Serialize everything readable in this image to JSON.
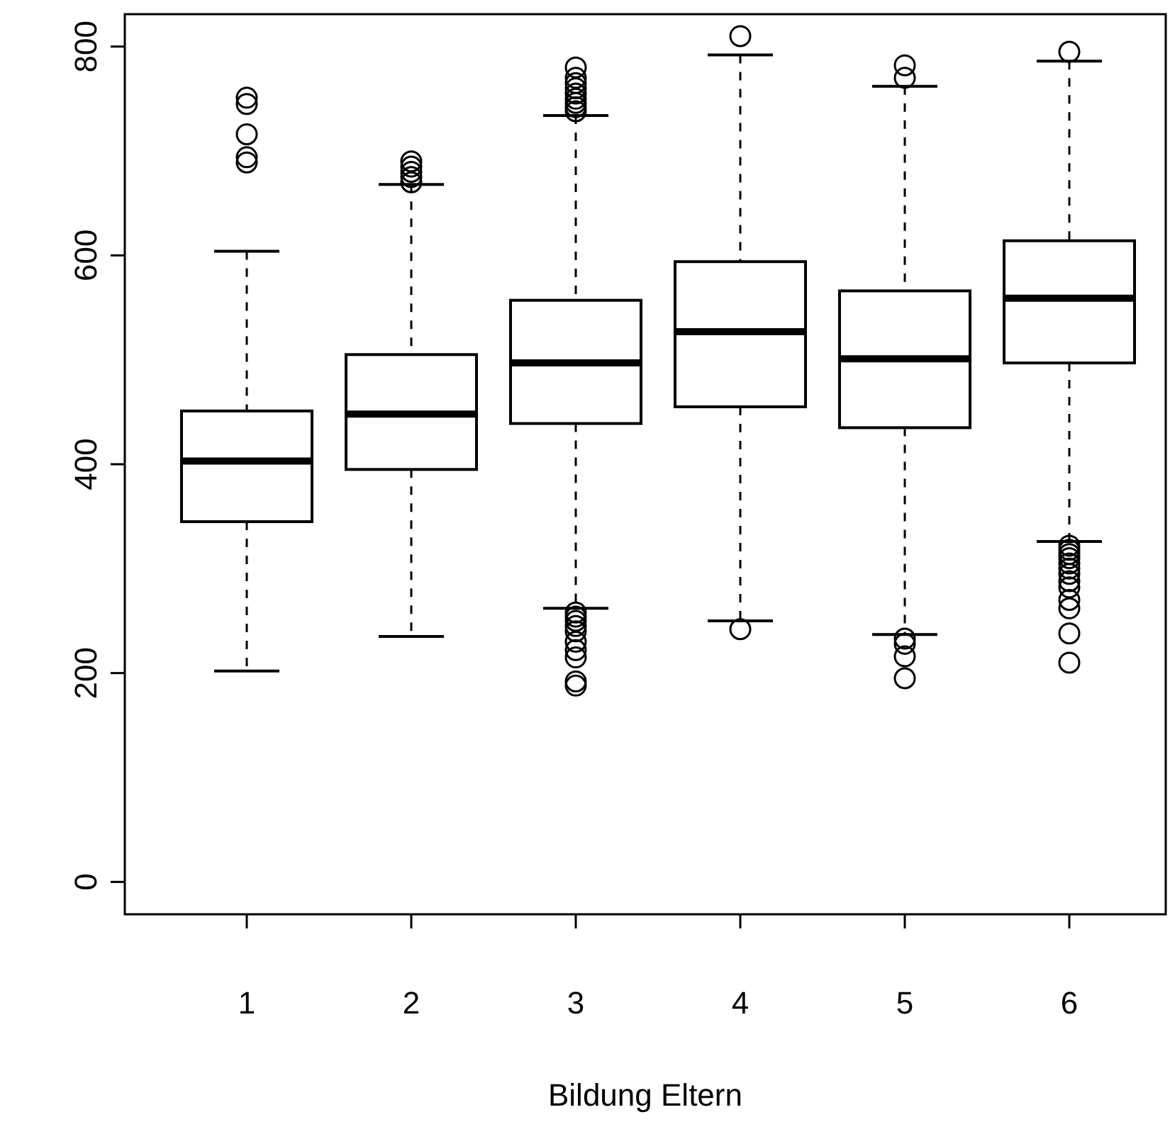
{
  "chart_data": {
    "type": "box",
    "xlabel": "Bildung Eltern",
    "categories": [
      "1",
      "2",
      "3",
      "4",
      "5",
      "6"
    ],
    "ylim": [
      -31,
      831
    ],
    "yticks": [
      0,
      200,
      400,
      600,
      800
    ],
    "grid": false,
    "color": "#000000",
    "boxes": [
      {
        "low": 202,
        "q1": 345,
        "median": 403,
        "q3": 451,
        "high": 604,
        "outliers": [
          751,
          745,
          716,
          694,
          689
        ]
      },
      {
        "low": 235,
        "q1": 395,
        "median": 448,
        "q3": 505,
        "high": 668,
        "outliers": [
          670,
          675,
          680,
          685,
          690
        ]
      },
      {
        "low": 262,
        "q1": 439,
        "median": 497,
        "q3": 557,
        "high": 734,
        "outliers": [
          738,
          742,
          746,
          750,
          755,
          760,
          765,
          770,
          780,
          258,
          254,
          250,
          245,
          240,
          230,
          222,
          215,
          192,
          188
        ]
      },
      {
        "low": 250,
        "q1": 455,
        "median": 527,
        "q3": 594,
        "high": 792,
        "outliers": [
          810,
          242
        ]
      },
      {
        "low": 237,
        "q1": 435,
        "median": 501,
        "q3": 566,
        "high": 762,
        "outliers": [
          782,
          770,
          233,
          228,
          216,
          195
        ]
      },
      {
        "low": 326,
        "q1": 497,
        "median": 559,
        "q3": 614,
        "high": 786,
        "outliers": [
          795,
          322,
          318,
          314,
          310,
          305,
          300,
          295,
          288,
          282,
          270,
          262,
          238,
          210
        ]
      }
    ]
  }
}
